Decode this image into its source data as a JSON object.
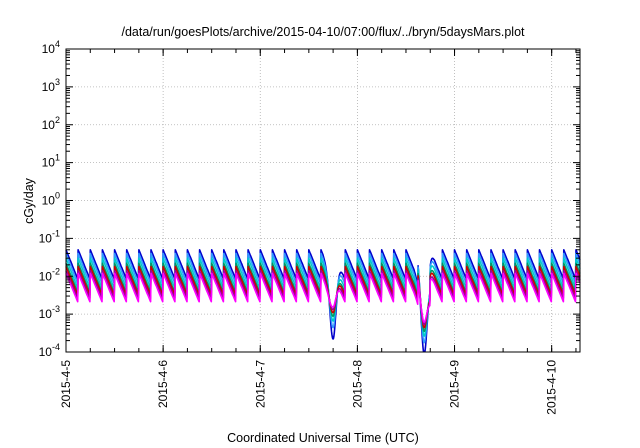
{
  "chart_data": {
    "type": "line",
    "title": "/data/run/goesPlots/archive/2015-04-10/07:00/flux/../bryn/5daysMars.plot",
    "xlabel": "Coordinated Universal Time (UTC)",
    "ylabel": "cGy/day",
    "y_scale": "log",
    "ylim": [
      0.0001,
      10000
    ],
    "xlim": [
      "2015-04-05T00:00",
      "2015-04-10T07:00"
    ],
    "grid": true,
    "legend": "none",
    "y_ticks": [
      {
        "mantissa": "10",
        "exponent": "-4",
        "value": 0.0001
      },
      {
        "mantissa": "10",
        "exponent": "-3",
        "value": 0.001
      },
      {
        "mantissa": "10",
        "exponent": "-2",
        "value": 0.01
      },
      {
        "mantissa": "10",
        "exponent": "-1",
        "value": 0.1
      },
      {
        "mantissa": "10",
        "exponent": "0",
        "value": 1
      },
      {
        "mantissa": "10",
        "exponent": "1",
        "value": 10
      },
      {
        "mantissa": "10",
        "exponent": "2",
        "value": 100
      },
      {
        "mantissa": "10",
        "exponent": "3",
        "value": 1000
      },
      {
        "mantissa": "10",
        "exponent": "4",
        "value": 10000
      }
    ],
    "x_ticks": [
      {
        "label": "2015-4-5",
        "date": "2015-04-05T00:00"
      },
      {
        "label": "2015-4-6",
        "date": "2015-04-06T00:00"
      },
      {
        "label": "2015-4-7",
        "date": "2015-04-07T00:00"
      },
      {
        "label": "2015-4-8",
        "date": "2015-04-08T00:00"
      },
      {
        "label": "2015-4-9",
        "date": "2015-04-09T00:00"
      },
      {
        "label": "2015-4-10",
        "date": "2015-04-10T00:00"
      }
    ],
    "series": [
      {
        "color": "#0000cc",
        "peak": 0.05,
        "trough": 0.008
      },
      {
        "color": "#3399ff",
        "peak": 0.04,
        "trough": 0.006
      },
      {
        "color": "#00cccc",
        "peak": 0.03,
        "trough": 0.0045
      },
      {
        "color": "#009966",
        "peak": 0.022,
        "trough": 0.0035
      },
      {
        "color": "#cc0000",
        "peak": 0.018,
        "trough": 0.003
      },
      {
        "color": "#990099",
        "peak": 0.014,
        "trough": 0.0025
      },
      {
        "color": "#ff00ff",
        "peak": 0.012,
        "trough": 0.002
      }
    ],
    "spike_period_hours": 3,
    "dips": [
      {
        "date": "2015-04-07T18:00",
        "min": 0.0007
      },
      {
        "date": "2015-04-08T16:30",
        "min": 0.00028
      }
    ]
  }
}
